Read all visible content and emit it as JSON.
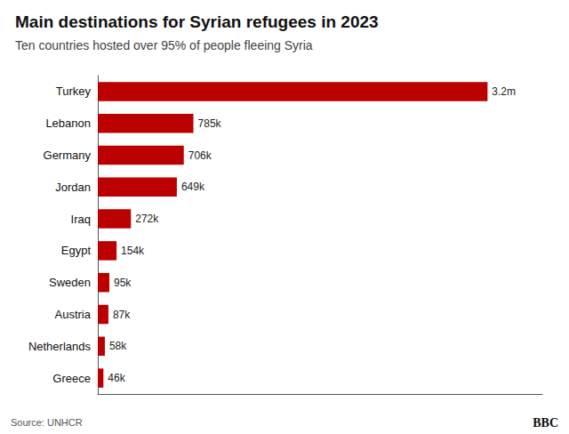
{
  "chart_data": {
    "type": "bar",
    "orientation": "horizontal",
    "title": "Main destinations for Syrian refugees in 2023",
    "subtitle": "Ten countries hosted over 95% of people fleeing Syria",
    "annotations": [
      "Source: UNHCR",
      "BBC"
    ],
    "categories": [
      "Turkey",
      "Lebanon",
      "Germany",
      "Jordan",
      "Iraq",
      "Egypt",
      "Sweden",
      "Austria",
      "Netherlands",
      "Greece"
    ],
    "values": [
      3200000,
      785000,
      706000,
      649000,
      272000,
      154000,
      95000,
      87000,
      58000,
      46000
    ],
    "value_labels": [
      "3.2m",
      "785k",
      "706k",
      "649k",
      "272k",
      "154k",
      "95k",
      "87k",
      "58k",
      "46k"
    ],
    "data_labels": true,
    "color": "#bb0000",
    "xlim": [
      0,
      3650000
    ],
    "tick_labels": "y",
    "grid": false
  }
}
